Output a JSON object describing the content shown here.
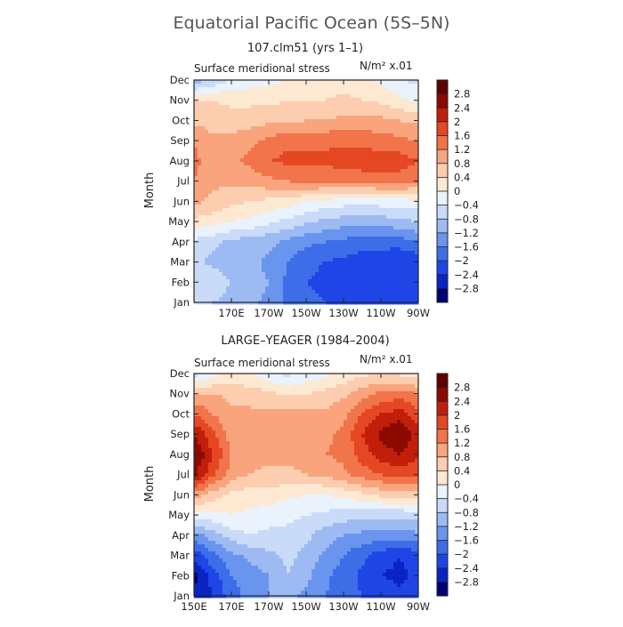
{
  "chart_data": [
    {
      "type": "heatmap",
      "main_title": "Equatorial Pacific Ocean (5S–5N)",
      "title": "107.clm51 (yrs 1–1)",
      "subtitle": "Surface meridional stress",
      "units": "N/m² x.01",
      "xlabel": "",
      "ylabel": "Month",
      "x_tick_labels": [
        "170E",
        "170W",
        "150W",
        "130W",
        "110W",
        "90W"
      ],
      "y_tick_labels": [
        "Jan",
        "Feb",
        "Mar",
        "Apr",
        "May",
        "Jun",
        "Jul",
        "Aug",
        "Sep",
        "Oct",
        "Nov",
        "Dec"
      ],
      "xlim": [
        150,
        270
      ],
      "x": [
        150,
        160,
        170,
        180,
        190,
        200,
        210,
        220,
        230,
        240,
        250,
        260,
        270
      ],
      "z": [
        [
          -0.6,
          -0.8,
          -1.0,
          -1.1,
          -1.3,
          -1.7,
          -1.9,
          -2.0,
          -2.1,
          -2.2,
          -2.2,
          -2.3,
          -2.2
        ],
        [
          -0.8,
          -0.5,
          -0.8,
          -1.0,
          -1.2,
          -1.7,
          -2.0,
          -2.1,
          -2.2,
          -2.3,
          -2.4,
          -2.4,
          -2.3
        ],
        [
          -0.7,
          -0.9,
          -1.1,
          -1.1,
          -1.3,
          -1.6,
          -1.9,
          -2.0,
          -2.1,
          -2.2,
          -2.3,
          -2.4,
          -2.3
        ],
        [
          -0.5,
          -0.7,
          -0.9,
          -1.0,
          -1.1,
          -1.3,
          -1.5,
          -1.6,
          -1.7,
          -1.8,
          -1.8,
          -1.8,
          -1.6
        ],
        [
          0.3,
          0.2,
          0.0,
          -0.1,
          -0.3,
          -0.5,
          -0.7,
          -0.9,
          -1.0,
          -1.1,
          -1.0,
          -0.9,
          -0.8
        ],
        [
          0.9,
          0.7,
          0.5,
          0.4,
          0.3,
          0.2,
          0.0,
          -0.1,
          -0.2,
          -0.3,
          -0.2,
          -0.2,
          -0.1
        ],
        [
          1.2,
          0.9,
          0.9,
          1.0,
          1.1,
          1.2,
          1.3,
          1.3,
          1.3,
          1.4,
          1.4,
          1.4,
          1.3
        ],
        [
          1.3,
          1.0,
          1.1,
          1.3,
          1.6,
          1.7,
          1.7,
          1.7,
          1.8,
          1.8,
          1.8,
          1.8,
          1.6
        ],
        [
          1.2,
          0.9,
          0.9,
          1.1,
          1.3,
          1.5,
          1.5,
          1.5,
          1.5,
          1.5,
          1.4,
          1.3,
          1.2
        ],
        [
          0.7,
          0.6,
          0.6,
          0.6,
          0.7,
          0.7,
          0.8,
          0.8,
          0.9,
          0.9,
          0.9,
          0.8,
          0.7
        ],
        [
          0.4,
          0.4,
          0.3,
          0.3,
          0.3,
          0.4,
          0.4,
          0.4,
          0.5,
          0.4,
          0.3,
          0.1,
          -0.1
        ],
        [
          -1.1,
          -0.7,
          -0.4,
          -0.2,
          -0.1,
          0.0,
          0.1,
          0.2,
          0.2,
          0.1,
          -0.1,
          -0.4,
          -0.5
        ]
      ],
      "levels": [
        -2.8,
        -2.4,
        -2.0,
        -1.6,
        -1.2,
        -0.8,
        -0.4,
        0.0,
        0.4,
        0.8,
        1.2,
        1.6,
        2.0,
        2.4,
        2.8
      ]
    },
    {
      "type": "heatmap",
      "title": "LARGE–YEAGER (1984–2004)",
      "subtitle": "Surface meridional stress",
      "units": "N/m² x.01",
      "xlabel": "",
      "ylabel": "Month",
      "x_tick_labels": [
        "150E",
        "170E",
        "170W",
        "150W",
        "130W",
        "110W",
        "90W"
      ],
      "y_tick_labels": [
        "Jan",
        "Feb",
        "Mar",
        "Apr",
        "May",
        "Jun",
        "Jul",
        "Aug",
        "Sep",
        "Oct",
        "Nov",
        "Dec"
      ],
      "xlim": [
        150,
        270
      ],
      "x": [
        150,
        160,
        170,
        180,
        190,
        200,
        210,
        220,
        230,
        240,
        250,
        260,
        270
      ],
      "z": [
        [
          -2.8,
          -2.4,
          -1.8,
          -1.4,
          -1.2,
          -1.1,
          -1.3,
          -1.6,
          -1.8,
          -2.0,
          -2.2,
          -2.3,
          -2.2
        ],
        [
          -2.9,
          -2.2,
          -1.6,
          -1.4,
          -1.2,
          -0.8,
          -1.1,
          -1.5,
          -1.8,
          -2.1,
          -2.4,
          -2.5,
          -2.3
        ],
        [
          -2.3,
          -1.7,
          -1.3,
          -1.1,
          -0.9,
          -0.7,
          -0.9,
          -1.3,
          -1.6,
          -1.9,
          -2.2,
          -2.4,
          -2.2
        ],
        [
          -1.4,
          -1.0,
          -0.6,
          -0.4,
          -0.5,
          -0.5,
          -0.7,
          -1.0,
          -1.2,
          -1.3,
          -1.4,
          -1.4,
          -1.3
        ],
        [
          -0.2,
          -0.1,
          0.0,
          -0.1,
          -0.2,
          -0.3,
          -0.4,
          -0.5,
          -0.6,
          -0.7,
          -0.7,
          -0.7,
          -0.6
        ],
        [
          1.1,
          0.6,
          0.3,
          0.2,
          0.2,
          0.1,
          0.0,
          0.0,
          0.1,
          0.3,
          0.5,
          0.6,
          0.5
        ],
        [
          2.5,
          1.7,
          1.0,
          0.8,
          0.7,
          0.7,
          0.8,
          0.9,
          1.1,
          1.4,
          1.6,
          1.8,
          1.6
        ],
        [
          2.9,
          2.0,
          1.2,
          1.0,
          0.9,
          0.9,
          1.0,
          1.2,
          1.3,
          1.8,
          2.2,
          2.4,
          2.1
        ],
        [
          2.4,
          1.7,
          1.0,
          0.9,
          0.9,
          1.0,
          1.0,
          1.1,
          1.3,
          2.0,
          2.5,
          2.8,
          2.2
        ],
        [
          1.6,
          1.2,
          0.9,
          0.9,
          0.9,
          1.0,
          0.9,
          0.9,
          1.1,
          1.6,
          2.0,
          2.2,
          1.7
        ],
        [
          0.8,
          0.8,
          0.7,
          0.6,
          0.5,
          0.3,
          0.4,
          0.5,
          0.7,
          1.0,
          1.3,
          1.4,
          1.2
        ],
        [
          -0.6,
          -0.2,
          0.1,
          0.0,
          -0.3,
          -0.5,
          -0.3,
          -0.1,
          0.1,
          0.3,
          0.4,
          0.3,
          0.1
        ]
      ],
      "levels": [
        -2.8,
        -2.4,
        -2.0,
        -1.6,
        -1.2,
        -0.8,
        -0.4,
        0.0,
        0.4,
        0.8,
        1.2,
        1.6,
        2.0,
        2.4,
        2.8
      ]
    }
  ],
  "colors": [
    "#00007a",
    "#0a24c4",
    "#1f45e6",
    "#3d6ee8",
    "#6a95ee",
    "#9dbaf3",
    "#c9dbf8",
    "#eaf2fd",
    "#fde8d2",
    "#fccdaf",
    "#f9a47d",
    "#f1744a",
    "#e54723",
    "#c21f0b",
    "#8d0a00",
    "#5f0000"
  ],
  "colorbar_labels": [
    "2.8",
    "2.4",
    "2",
    "1.6",
    "1.2",
    "0.8",
    "0.4",
    "0",
    "−0.4",
    "−0.8",
    "−1.2",
    "−1.6",
    "−2",
    "−2.4",
    "−2.8"
  ]
}
